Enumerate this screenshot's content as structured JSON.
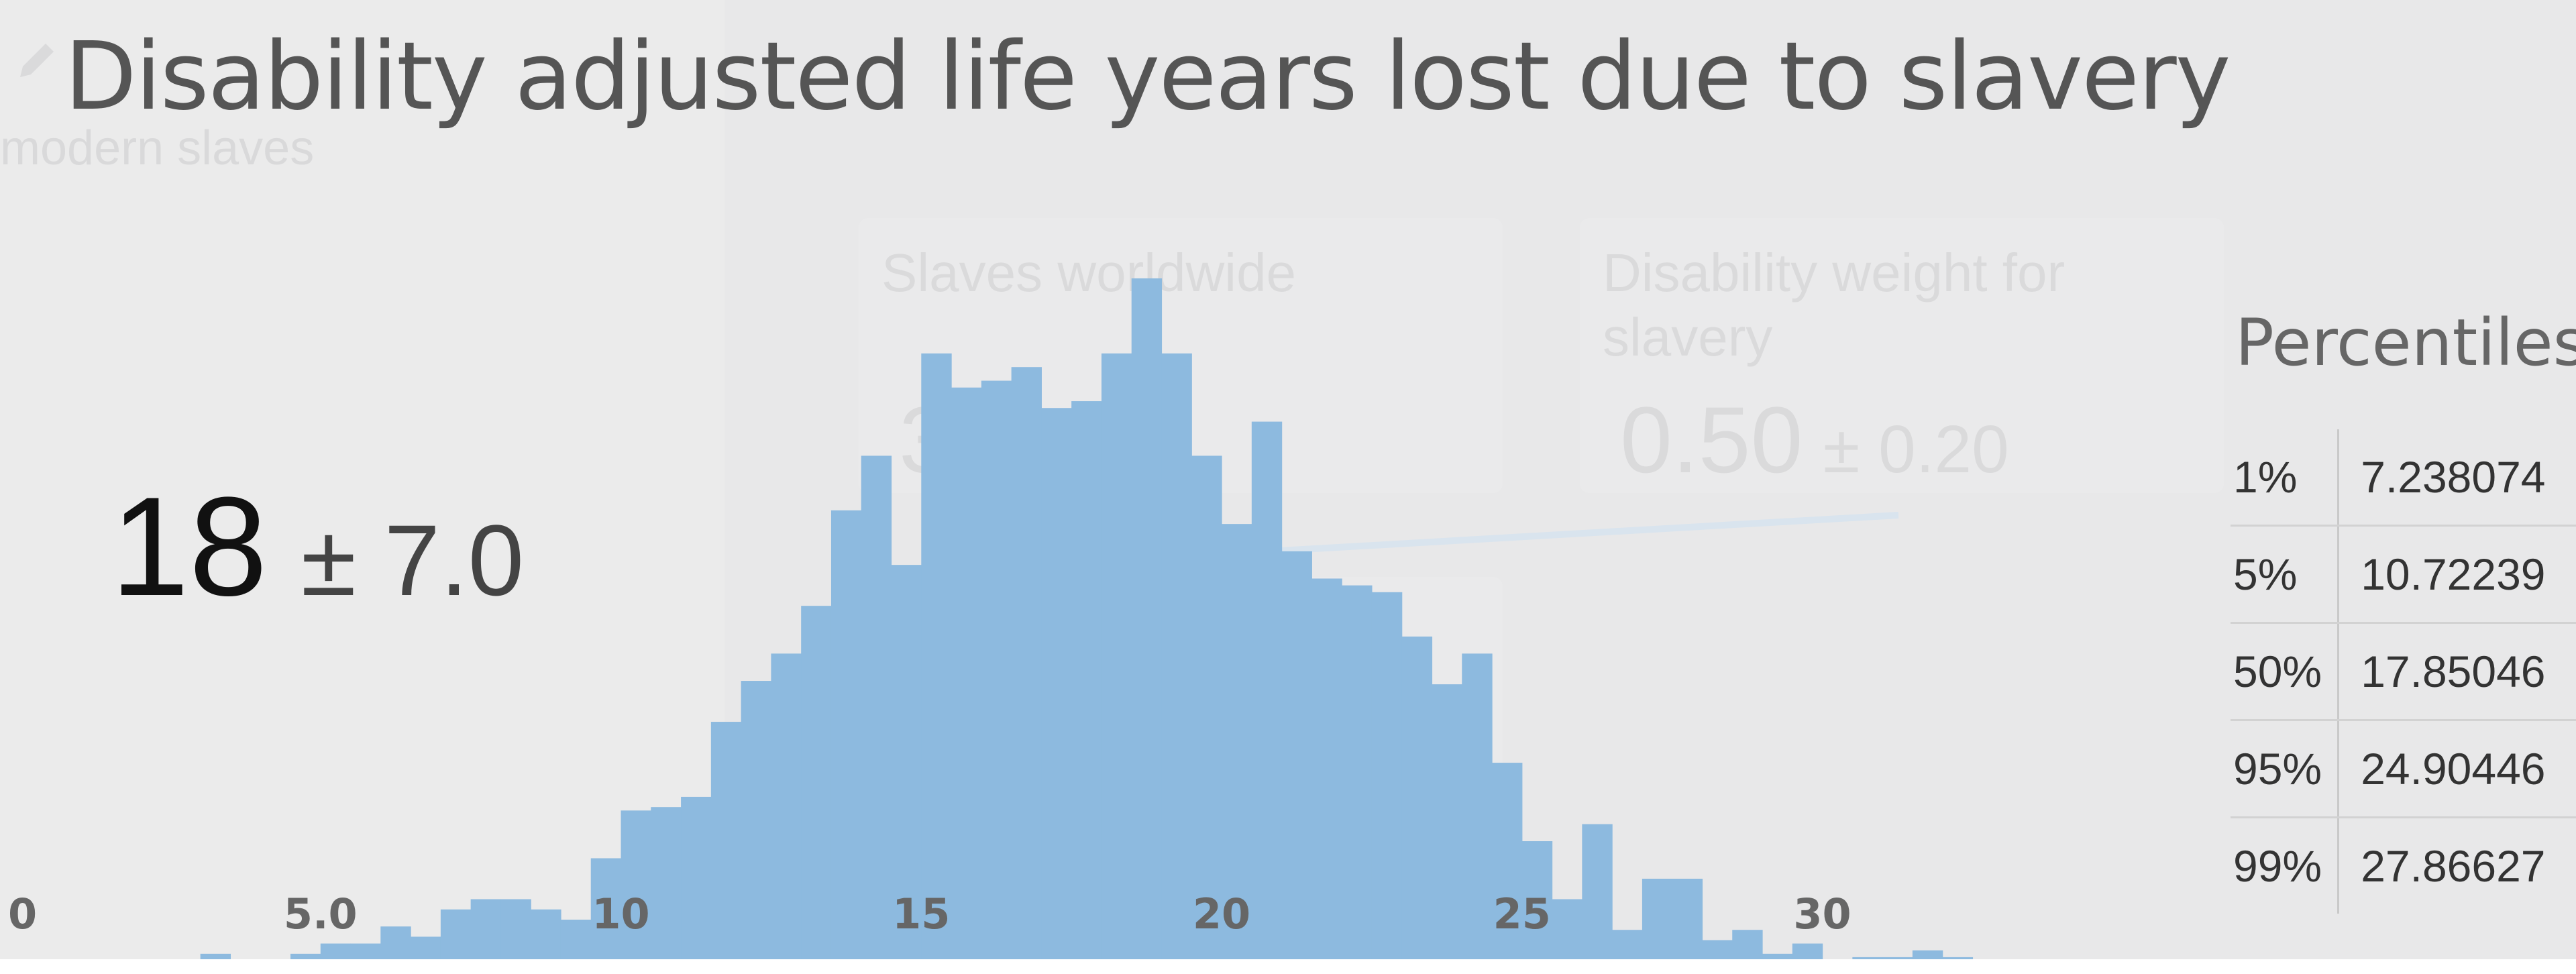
{
  "title": "Disability adjusted life years lost due to slavery",
  "background_ghost": {
    "subtitle": "modern slaves",
    "cards": [
      {
        "title": "Slaves worldwide",
        "value": "36",
        "pm": ""
      },
      {
        "title": "Disability weight for slavery",
        "value": "0.50",
        "pm": "± 0.20"
      }
    ]
  },
  "summary": {
    "mean": "18",
    "spread": "± 7.0"
  },
  "percentiles": {
    "title": "Percentiles",
    "rows": [
      {
        "p": "1%",
        "value": "7.238074"
      },
      {
        "p": "5%",
        "value": "10.72239"
      },
      {
        "p": "50%",
        "value": "17.85046"
      },
      {
        "p": "95%",
        "value": "24.90446"
      },
      {
        "p": "99%",
        "value": "27.86627"
      }
    ]
  },
  "colors": {
    "bar": "#8dbadf",
    "tick_text": "#666666",
    "background": "#e8e8e9"
  },
  "chart_data": {
    "type": "bar",
    "xlim": [
      0,
      33.5
    ],
    "ylim": [
      0,
      100
    ],
    "bin_start": 3.0,
    "bin_width": 0.5,
    "x_ticks": [
      "0",
      "5.0",
      "10",
      "15",
      "20",
      "25",
      "30"
    ],
    "x_tick_values": [
      0,
      5,
      10,
      15,
      20,
      25,
      30
    ],
    "values": [
      1.0,
      0,
      0,
      1.0,
      2.5,
      2.5,
      5.0,
      3.5,
      7.5,
      9.0,
      9.0,
      7.5,
      6.0,
      15.0,
      22.0,
      22.5,
      24.0,
      35.0,
      41.0,
      45.0,
      52.0,
      66.0,
      74.0,
      58.0,
      89.0,
      84.0,
      85.0,
      87.0,
      81.0,
      82.0,
      89.0,
      100.0,
      89.0,
      74.0,
      64.0,
      79.0,
      60.0,
      56.0,
      55.0,
      54.0,
      47.5,
      40.5,
      45.0,
      29.0,
      17.5,
      9.0,
      20.0,
      4.5,
      12.0,
      12.0,
      3.0,
      4.5,
      1.0,
      2.5,
      0,
      0.5,
      0.5,
      1.5,
      0.5
    ]
  }
}
